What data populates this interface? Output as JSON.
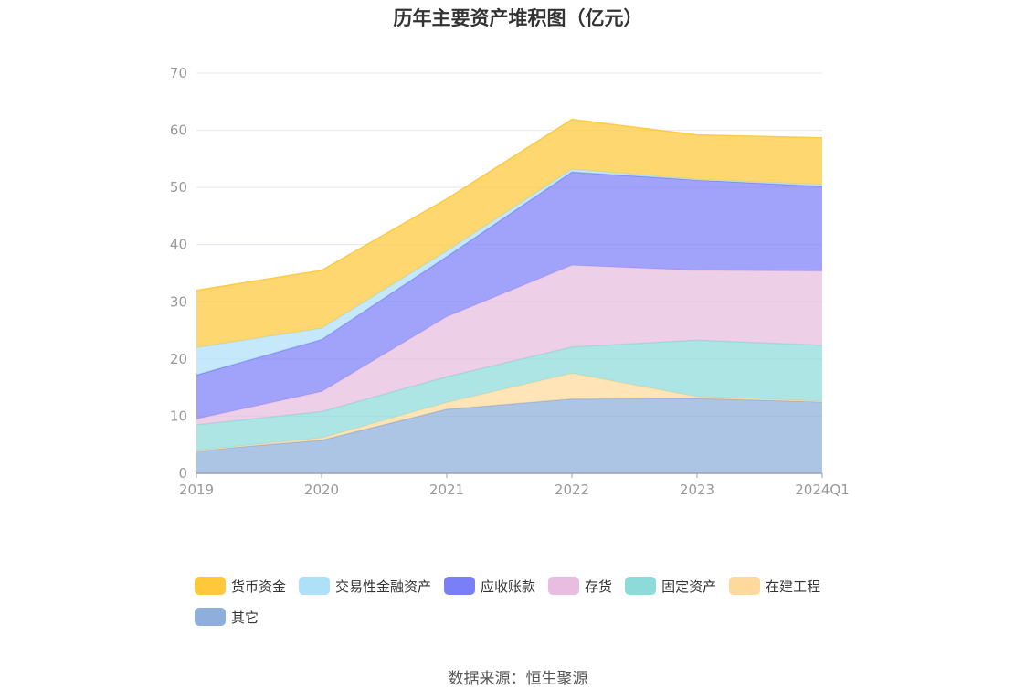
{
  "chart_data": {
    "type": "area",
    "stacked": true,
    "title": "历年主要资产堆积图（亿元）",
    "categories": [
      "2019",
      "2020",
      "2021",
      "2022",
      "2023",
      "2024Q1"
    ],
    "yticks": [
      "0",
      "10",
      "20",
      "30",
      "40",
      "50",
      "60",
      "70"
    ],
    "ylim": [
      0,
      70
    ],
    "grid": true,
    "legend_position": "bottom",
    "series": [
      {
        "name": "其它",
        "color": "#8eaedb",
        "values": [
          4.0,
          5.8,
          11.2,
          13.0,
          13.1,
          12.5
        ]
      },
      {
        "name": "在建工程",
        "color": "#ffd99c",
        "values": [
          0.0,
          0.4,
          1.2,
          4.5,
          0.3,
          0.1
        ]
      },
      {
        "name": "固定资产",
        "color": "#8cdbd8",
        "values": [
          4.5,
          4.6,
          4.5,
          4.6,
          9.9,
          9.8
        ]
      },
      {
        "name": "存货",
        "color": "#e8bddf",
        "values": [
          1.0,
          3.5,
          10.5,
          14.3,
          12.2,
          13.0
        ]
      },
      {
        "name": "应收账款",
        "color": "#7b7ff7",
        "values": [
          7.7,
          9.1,
          10.5,
          16.3,
          15.8,
          14.8
        ]
      },
      {
        "name": "交易性金融资产",
        "color": "#aee0f8",
        "values": [
          4.8,
          2.0,
          1.0,
          0.5,
          0.1,
          0.3
        ]
      },
      {
        "name": "货币资金",
        "color": "#ffc83a",
        "values": [
          10.0,
          10.1,
          9.1,
          8.7,
          7.8,
          8.2
        ]
      }
    ],
    "legend_order": [
      "货币资金",
      "交易性金融资产",
      "应收账款",
      "存货",
      "固定资产",
      "在建工程",
      "其它"
    ]
  },
  "source": "数据来源：恒生聚源"
}
